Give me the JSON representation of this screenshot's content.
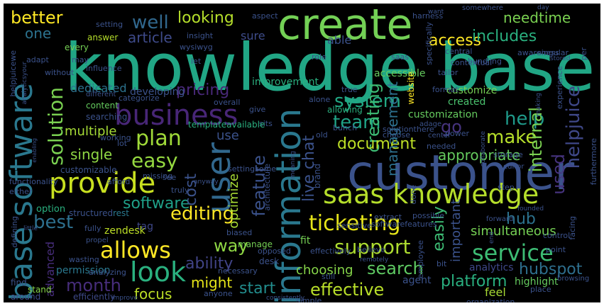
{
  "wordcloud": {
    "background": "#000000",
    "words": [
      {
        "text": "knowledge base",
        "color": "#21a685"
      },
      {
        "text": "customer",
        "color": "#3b528b"
      },
      {
        "text": "create",
        "color": "#73d055"
      },
      {
        "text": "base software",
        "color": "#2a788e"
      },
      {
        "text": "information",
        "color": "#2a788e"
      },
      {
        "text": "saas knowledge",
        "color": "#b5de2b"
      },
      {
        "text": "business",
        "color": "#482677"
      },
      {
        "text": "provide",
        "color": "#c8e020"
      },
      {
        "text": "user",
        "color": "#31688e"
      },
      {
        "text": "look",
        "color": "#2ab07f"
      },
      {
        "text": "allows",
        "color": "#fde725"
      },
      {
        "text": "ticketing",
        "color": "#e5e419"
      },
      {
        "text": "service",
        "color": "#3dbc74"
      },
      {
        "text": "support",
        "color": "#addc30"
      },
      {
        "text": "search",
        "color": "#5ec962"
      },
      {
        "text": "plan",
        "color": "#a0da39"
      },
      {
        "text": "easy",
        "color": "#95d840"
      },
      {
        "text": "helpjuice",
        "color": "#3f4889"
      },
      {
        "text": "help",
        "color": "#1f9a8a"
      },
      {
        "text": "team",
        "color": "#20a386"
      },
      {
        "text": "well",
        "color": "#31688e"
      },
      {
        "text": "better",
        "color": "#fde725"
      },
      {
        "text": "looking",
        "color": "#b5de2b"
      },
      {
        "text": "access",
        "color": "#fde725"
      },
      {
        "text": "needtime",
        "color": "#7ad151"
      },
      {
        "text": "includes",
        "color": "#2ab07f"
      },
      {
        "text": "article",
        "color": "#3e4a89"
      },
      {
        "text": "pricing",
        "color": "#482878"
      },
      {
        "text": "system",
        "color": "#22a884"
      },
      {
        "text": "solution",
        "color": "#7ad151"
      },
      {
        "text": "creating",
        "color": "#3dbc74"
      },
      {
        "text": "feature",
        "color": "#3b528b"
      },
      {
        "text": "editing",
        "color": "#fde725"
      },
      {
        "text": "software",
        "color": "#1fa088"
      },
      {
        "text": "best",
        "color": "#2d708e"
      },
      {
        "text": "hub",
        "color": "#2c728e"
      },
      {
        "text": "make",
        "color": "#b5de2b"
      },
      {
        "text": "document",
        "color": "#bddf26"
      },
      {
        "text": "management",
        "color": "#2d708e"
      },
      {
        "text": "internal",
        "color": "#7ad151"
      },
      {
        "text": "used",
        "color": "#46337e"
      },
      {
        "text": "go",
        "color": "#46337e"
      },
      {
        "text": "single",
        "color": "#8fd744"
      },
      {
        "text": "appropriate",
        "color": "#65cb5e"
      },
      {
        "text": "live chat",
        "color": "#3b528b"
      },
      {
        "text": "easily",
        "color": "#3dbc74"
      },
      {
        "text": "month",
        "color": "#472d7b"
      },
      {
        "text": "ability",
        "color": "#414487"
      },
      {
        "text": "way",
        "color": "#8fd744"
      },
      {
        "text": "focus",
        "color": "#bddf26"
      },
      {
        "text": "might",
        "color": "#e5e419"
      },
      {
        "text": "start",
        "color": "#228d8d"
      },
      {
        "text": "effective",
        "color": "#b8de29"
      },
      {
        "text": "choosing",
        "color": "#86d549"
      },
      {
        "text": "platform",
        "color": "#29af7f"
      },
      {
        "text": "hubspot",
        "color": "#2e6f8e"
      },
      {
        "text": "simultaneous",
        "color": "#75d054"
      },
      {
        "text": "important",
        "color": "#3b528b"
      },
      {
        "text": "cost",
        "color": "#3b528b"
      },
      {
        "text": "optimize",
        "color": "#a8db34"
      },
      {
        "text": "use",
        "color": "#3b528b"
      },
      {
        "text": "one",
        "color": "#2c728e"
      },
      {
        "text": "sure",
        "color": "#3e4c8a"
      },
      {
        "text": "able",
        "color": "#3b528b"
      },
      {
        "text": "multiple",
        "color": "#a5db36"
      },
      {
        "text": "dedicated",
        "color": "#2c728e"
      },
      {
        "text": "developing",
        "color": "#3b528b"
      },
      {
        "text": "customize",
        "color": "#75d054"
      },
      {
        "text": "customization",
        "color": "#65cb5e"
      },
      {
        "text": "created",
        "color": "#4ac16d"
      },
      {
        "text": "tag",
        "color": "#3f4889"
      },
      {
        "text": "zendesk",
        "color": "#bddf26"
      },
      {
        "text": "advanced",
        "color": "#472d7b"
      },
      {
        "text": "permission",
        "color": "#2a788e"
      },
      {
        "text": "analytics",
        "color": "#3f4889"
      },
      {
        "text": "highlight",
        "color": "#65cb5e"
      },
      {
        "text": "feel",
        "color": "#a8db34"
      },
      {
        "text": "agent",
        "color": "#3b528b"
      },
      {
        "text": "fit",
        "color": "#75d054"
      },
      {
        "text": "desk",
        "color": "#3b528b"
      },
      {
        "text": "manage",
        "color": "#75d054"
      },
      {
        "text": "option",
        "color": "#2ab07f"
      },
      {
        "text": "structured",
        "color": "#3b528b"
      },
      {
        "text": "rest",
        "color": "#2a788e"
      },
      {
        "text": "find",
        "color": "#3b528b"
      },
      {
        "text": "around",
        "color": "#3e4a89"
      },
      {
        "text": "stand",
        "color": "#86d549"
      },
      {
        "text": "efficiently",
        "color": "#3e4a89"
      },
      {
        "text": "content",
        "color": "#65cb5e"
      },
      {
        "text": "searching",
        "color": "#3b528b"
      },
      {
        "text": "every",
        "color": "#75d054"
      },
      {
        "text": "answer",
        "color": "#b5de2b"
      },
      {
        "text": "setting",
        "color": "#3b528b"
      },
      {
        "text": "insight",
        "color": "#3b528b"
      },
      {
        "text": "wysiwyg",
        "color": "#3b528b"
      },
      {
        "text": "improvement",
        "color": "#2ab07f"
      },
      {
        "text": "accessible",
        "color": "#65cb5e"
      },
      {
        "text": "influence",
        "color": "#3b528b"
      },
      {
        "text": "role",
        "color": "#3b528b"
      },
      {
        "text": "saas",
        "color": "#3b528b"
      },
      {
        "text": "let",
        "color": "#3b528b"
      },
      {
        "text": "aspect",
        "color": "#3b528b"
      },
      {
        "text": "somewhere",
        "color": "#3b528b"
      },
      {
        "text": "central",
        "color": "#3b528b"
      },
      {
        "text": "contextual",
        "color": "#3b528b"
      },
      {
        "text": "awareness",
        "color": "#3b528b"
      },
      {
        "text": "website",
        "color": "#fde725"
      },
      {
        "text": "format",
        "color": "#3b528b"
      },
      {
        "text": "bunch",
        "color": "#3b528b"
      },
      {
        "text": "allowing",
        "color": "#2ab07f"
      },
      {
        "text": "true",
        "color": "#3b528b"
      },
      {
        "text": "alone",
        "color": "#3b528b"
      },
      {
        "text": "overall",
        "color": "#3b528b"
      },
      {
        "text": "give",
        "color": "#3b528b"
      },
      {
        "text": "sits",
        "color": "#3b528b"
      },
      {
        "text": "templateavailable",
        "color": "#2ab07f"
      },
      {
        "text": "choose",
        "color": "#3b528b"
      },
      {
        "text": "adage",
        "color": "#3b528b"
      },
      {
        "text": "power",
        "color": "#3b528b"
      },
      {
        "text": "center",
        "color": "#3b528b"
      },
      {
        "text": "old",
        "color": "#3b528b"
      },
      {
        "text": "needed",
        "color": "#3b528b"
      },
      {
        "text": "collaborate",
        "color": "#3b528b"
      },
      {
        "text": "storage",
        "color": "#3b528b"
      },
      {
        "text": "editor",
        "color": "#3b528b"
      },
      {
        "text": "brand",
        "color": "#3b528b"
      },
      {
        "text": "extract",
        "color": "#3b528b"
      },
      {
        "text": "sensitive",
        "color": "#3b528b"
      },
      {
        "text": "possible",
        "color": "#3b528b"
      },
      {
        "text": "done",
        "color": "#3b528b"
      },
      {
        "text": "step",
        "color": "#3b528b"
      },
      {
        "text": "afford",
        "color": "#3b528b"
      },
      {
        "text": "missing",
        "color": "#3b528b"
      },
      {
        "text": "see",
        "color": "#3b528b"
      },
      {
        "text": "truly",
        "color": "#3b528b"
      },
      {
        "text": "customizable",
        "color": "#3b528b"
      },
      {
        "text": "settingsome",
        "color": "#3b528b"
      },
      {
        "text": "architecture",
        "color": "#3b528b"
      },
      {
        "text": "solutionthere",
        "color": "#3b528b"
      },
      {
        "text": "softwarefeatures",
        "color": "#3b528b"
      },
      {
        "text": "forward",
        "color": "#3b528b"
      },
      {
        "text": "control",
        "color": "#3b528b"
      },
      {
        "text": "point",
        "color": "#3b528b"
      },
      {
        "text": "founded",
        "color": "#3b528b"
      },
      {
        "text": "bit",
        "color": "#3b528b"
      },
      {
        "text": "still",
        "color": "#3b528b"
      },
      {
        "text": "place",
        "color": "#3b528b"
      },
      {
        "text": "organization",
        "color": "#3b528b"
      },
      {
        "text": "simple",
        "color": "#3b528b"
      },
      {
        "text": "remotely",
        "color": "#3b528b"
      },
      {
        "text": "believe",
        "color": "#3b528b"
      },
      {
        "text": "effectively",
        "color": "#3b528b"
      },
      {
        "text": "opposed",
        "color": "#3b528b"
      },
      {
        "text": "biased",
        "color": "#3b528b"
      },
      {
        "text": "necessary",
        "color": "#3b528b"
      },
      {
        "text": "anyone",
        "color": "#3b528b"
      },
      {
        "text": "analyzing",
        "color": "#3b528b"
      },
      {
        "text": "wasting",
        "color": "#3b528b"
      },
      {
        "text": "fully",
        "color": "#3b528b"
      },
      {
        "text": "propel",
        "color": "#3b528b"
      },
      {
        "text": "improve",
        "color": "#3b528b"
      },
      {
        "text": "consistently",
        "color": "#3b528b"
      },
      {
        "text": "browsing",
        "color": "#3b528b"
      },
      {
        "text": "categorize",
        "color": "#3b528b"
      },
      {
        "text": "different",
        "color": "#3b528b"
      },
      {
        "text": "working",
        "color": "#3b528b"
      },
      {
        "text": "lot",
        "color": "#3b528b"
      },
      {
        "text": "may",
        "color": "#3b528b"
      },
      {
        "text": "adapt",
        "color": "#3b528b"
      },
      {
        "text": "without",
        "color": "#3b528b"
      },
      {
        "text": "helpjuicewe",
        "color": "#3b528b"
      },
      {
        "text": "analyticsyour",
        "color": "#3b528b"
      },
      {
        "text": "enabling",
        "color": "#3b528b"
      },
      {
        "text": "functionality",
        "color": "#3b528b"
      },
      {
        "text": "either",
        "color": "#3b528b"
      },
      {
        "text": "defining",
        "color": "#3b528b"
      },
      {
        "text": "little",
        "color": "#3b528b"
      },
      {
        "text": "anyway",
        "color": "#3b528b"
      },
      {
        "text": "employee",
        "color": "#3b528b"
      },
      {
        "text": "singular",
        "color": "#3b528b"
      },
      {
        "text": "per",
        "color": "#3b528b"
      },
      {
        "text": "experience",
        "color": "#3b528b"
      },
      {
        "text": "furthermore",
        "color": "#3b528b"
      },
      {
        "text": "bundling",
        "color": "#3b528b"
      },
      {
        "text": "specifically",
        "color": "#3b528b"
      },
      {
        "text": "harness",
        "color": "#3b528b"
      },
      {
        "text": "want",
        "color": "#3b528b"
      },
      {
        "text": "tailor",
        "color": "#3b528b"
      },
      {
        "text": "stored",
        "color": "#3b528b"
      },
      {
        "text": "making",
        "color": "#3b528b"
      },
      {
        "text": "facing",
        "color": "#3b528b"
      },
      {
        "text": "end",
        "color": "#3b528b"
      },
      {
        "text": "first",
        "color": "#3b528b"
      },
      {
        "text": "day",
        "color": "#3b528b"
      },
      {
        "text": "meaning",
        "color": "#3b528b"
      },
      {
        "text": "additionally",
        "color": "#3b528b"
      }
    ]
  }
}
